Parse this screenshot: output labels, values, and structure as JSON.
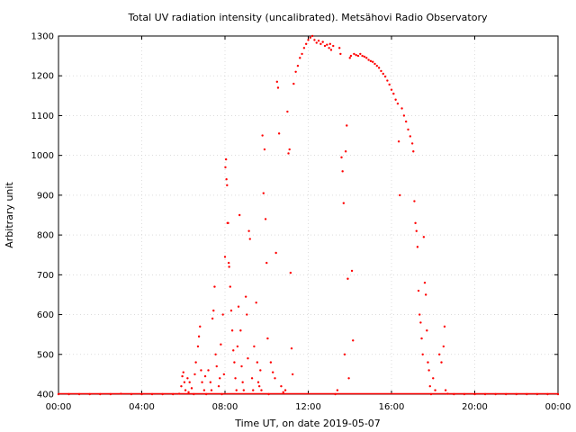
{
  "chart_data": {
    "type": "scatter",
    "title": "Total UV radiation intensity (uncalibrated). Metsähovi Radio Observatory",
    "xlabel": "Time UT, on date 2019-05-07",
    "ylabel": "Arbitrary unit",
    "x_unit": "hours UT",
    "xlim": [
      0,
      24
    ],
    "ylim": [
      400,
      1300
    ],
    "x_ticks": [
      {
        "value": 0,
        "label": "00:00"
      },
      {
        "value": 4,
        "label": "04:00"
      },
      {
        "value": 8,
        "label": "08:00"
      },
      {
        "value": 12,
        "label": "12:00"
      },
      {
        "value": 16,
        "label": "16:00"
      },
      {
        "value": 20,
        "label": "20:00"
      },
      {
        "value": 24,
        "label": "00:00"
      }
    ],
    "y_ticks": [
      400,
      500,
      600,
      700,
      800,
      900,
      1000,
      1100,
      1200,
      1300
    ],
    "grid": true,
    "legend": "none",
    "marker_color": "#ff0000",
    "series": [
      {
        "points": [
          [
            0.0,
            400
          ],
          [
            0.5,
            400
          ],
          [
            1.0,
            400
          ],
          [
            1.5,
            400
          ],
          [
            2.0,
            400
          ],
          [
            2.5,
            400
          ],
          [
            3.0,
            401
          ],
          [
            3.5,
            400
          ],
          [
            4.0,
            400
          ],
          [
            4.5,
            400
          ],
          [
            5.0,
            400
          ],
          [
            5.5,
            400
          ],
          [
            5.8,
            401
          ],
          [
            5.9,
            420
          ],
          [
            5.95,
            445
          ],
          [
            6.0,
            455
          ],
          [
            6.05,
            430
          ],
          [
            6.1,
            410
          ],
          [
            6.2,
            440
          ],
          [
            6.25,
            405
          ],
          [
            6.3,
            430
          ],
          [
            6.4,
            415
          ],
          [
            6.5,
            400
          ],
          [
            6.55,
            450
          ],
          [
            6.6,
            480
          ],
          [
            6.7,
            520
          ],
          [
            6.75,
            545
          ],
          [
            6.8,
            570
          ],
          [
            6.85,
            460
          ],
          [
            6.9,
            430
          ],
          [
            7.0,
            410
          ],
          [
            7.05,
            445
          ],
          [
            7.1,
            400
          ],
          [
            7.2,
            460
          ],
          [
            7.3,
            430
          ],
          [
            7.35,
            410
          ],
          [
            7.4,
            590
          ],
          [
            7.45,
            610
          ],
          [
            7.5,
            670
          ],
          [
            7.55,
            500
          ],
          [
            7.6,
            470
          ],
          [
            7.7,
            420
          ],
          [
            7.75,
            440
          ],
          [
            7.8,
            525
          ],
          [
            7.85,
            400
          ],
          [
            7.9,
            600
          ],
          [
            7.95,
            450
          ],
          [
            8.0,
            745
          ],
          [
            8.02,
            970
          ],
          [
            8.05,
            990
          ],
          [
            8.07,
            940
          ],
          [
            8.1,
            925
          ],
          [
            8.12,
            830
          ],
          [
            8.15,
            830
          ],
          [
            8.18,
            730
          ],
          [
            8.2,
            720
          ],
          [
            8.25,
            670
          ],
          [
            8.3,
            610
          ],
          [
            8.35,
            560
          ],
          [
            8.4,
            510
          ],
          [
            8.45,
            480
          ],
          [
            8.5,
            440
          ],
          [
            8.55,
            410
          ],
          [
            8.6,
            520
          ],
          [
            8.65,
            620
          ],
          [
            8.7,
            850
          ],
          [
            8.75,
            560
          ],
          [
            8.8,
            470
          ],
          [
            8.85,
            430
          ],
          [
            8.9,
            410
          ],
          [
            9.0,
            645
          ],
          [
            9.05,
            600
          ],
          [
            9.1,
            490
          ],
          [
            9.15,
            810
          ],
          [
            9.2,
            790
          ],
          [
            9.3,
            440
          ],
          [
            9.35,
            410
          ],
          [
            9.4,
            520
          ],
          [
            9.5,
            630
          ],
          [
            9.55,
            480
          ],
          [
            9.6,
            430
          ],
          [
            9.65,
            420
          ],
          [
            9.7,
            460
          ],
          [
            9.75,
            410
          ],
          [
            9.8,
            1050
          ],
          [
            9.85,
            905
          ],
          [
            9.9,
            1015
          ],
          [
            9.95,
            840
          ],
          [
            10.0,
            730
          ],
          [
            10.05,
            540
          ],
          [
            10.1,
            400
          ],
          [
            10.2,
            480
          ],
          [
            10.3,
            455
          ],
          [
            10.4,
            440
          ],
          [
            10.45,
            755
          ],
          [
            10.5,
            1185
          ],
          [
            10.55,
            1170
          ],
          [
            10.6,
            1055
          ],
          [
            10.7,
            420
          ],
          [
            10.8,
            405
          ],
          [
            10.9,
            410
          ],
          [
            11.0,
            1110
          ],
          [
            11.05,
            1005
          ],
          [
            11.1,
            1015
          ],
          [
            11.15,
            705
          ],
          [
            11.2,
            515
          ],
          [
            11.25,
            450
          ],
          [
            11.3,
            1180
          ],
          [
            11.4,
            1210
          ],
          [
            11.5,
            1225
          ],
          [
            11.6,
            1245
          ],
          [
            11.7,
            1255
          ],
          [
            11.8,
            1270
          ],
          [
            11.9,
            1280
          ],
          [
            12.0,
            1290
          ],
          [
            12.1,
            1296
          ],
          [
            12.2,
            1300
          ],
          [
            12.3,
            1290
          ],
          [
            12.4,
            1283
          ],
          [
            12.5,
            1288
          ],
          [
            12.6,
            1280
          ],
          [
            12.7,
            1285
          ],
          [
            12.8,
            1275
          ],
          [
            12.9,
            1278
          ],
          [
            13.0,
            1270
          ],
          [
            13.05,
            1280
          ],
          [
            13.1,
            1265
          ],
          [
            13.2,
            1275
          ],
          [
            13.3,
            400
          ],
          [
            13.4,
            410
          ],
          [
            13.5,
            1270
          ],
          [
            13.55,
            1255
          ],
          [
            13.6,
            995
          ],
          [
            13.65,
            960
          ],
          [
            13.7,
            880
          ],
          [
            13.75,
            500
          ],
          [
            13.8,
            1010
          ],
          [
            13.85,
            1075
          ],
          [
            13.9,
            690
          ],
          [
            13.95,
            440
          ],
          [
            14.0,
            1245
          ],
          [
            14.05,
            1250
          ],
          [
            14.1,
            710
          ],
          [
            14.15,
            535
          ],
          [
            14.2,
            1255
          ],
          [
            14.3,
            1252
          ],
          [
            14.4,
            1250
          ],
          [
            14.5,
            1255
          ],
          [
            14.6,
            1250
          ],
          [
            14.7,
            1248
          ],
          [
            14.8,
            1245
          ],
          [
            14.9,
            1240
          ],
          [
            15.0,
            1237
          ],
          [
            15.1,
            1235
          ],
          [
            15.2,
            1230
          ],
          [
            15.3,
            1225
          ],
          [
            15.4,
            1220
          ],
          [
            15.5,
            1212
          ],
          [
            15.6,
            1205
          ],
          [
            15.7,
            1198
          ],
          [
            15.8,
            1188
          ],
          [
            15.9,
            1178
          ],
          [
            16.0,
            1165
          ],
          [
            16.1,
            1155
          ],
          [
            16.2,
            1140
          ],
          [
            16.3,
            1130
          ],
          [
            16.35,
            1035
          ],
          [
            16.4,
            900
          ],
          [
            16.5,
            1118
          ],
          [
            16.6,
            1100
          ],
          [
            16.7,
            1085
          ],
          [
            16.8,
            1065
          ],
          [
            16.9,
            1048
          ],
          [
            17.0,
            1030
          ],
          [
            17.05,
            1010
          ],
          [
            17.1,
            885
          ],
          [
            17.15,
            830
          ],
          [
            17.2,
            810
          ],
          [
            17.25,
            770
          ],
          [
            17.3,
            660
          ],
          [
            17.35,
            600
          ],
          [
            17.4,
            580
          ],
          [
            17.45,
            540
          ],
          [
            17.5,
            500
          ],
          [
            17.55,
            795
          ],
          [
            17.6,
            680
          ],
          [
            17.65,
            650
          ],
          [
            17.7,
            560
          ],
          [
            17.75,
            480
          ],
          [
            17.8,
            460
          ],
          [
            17.85,
            420
          ],
          [
            17.9,
            400
          ],
          [
            18.0,
            440
          ],
          [
            18.1,
            410
          ],
          [
            18.3,
            500
          ],
          [
            18.4,
            480
          ],
          [
            18.5,
            520
          ],
          [
            18.55,
            570
          ],
          [
            18.6,
            410
          ],
          [
            18.7,
            401
          ],
          [
            19.0,
            400
          ],
          [
            19.5,
            400
          ],
          [
            20.0,
            400
          ],
          [
            20.5,
            400
          ],
          [
            21.0,
            400
          ],
          [
            21.5,
            400
          ],
          [
            22.0,
            400
          ],
          [
            22.5,
            400
          ],
          [
            23.0,
            400
          ],
          [
            23.5,
            400
          ],
          [
            24.0,
            400
          ]
        ]
      }
    ]
  }
}
